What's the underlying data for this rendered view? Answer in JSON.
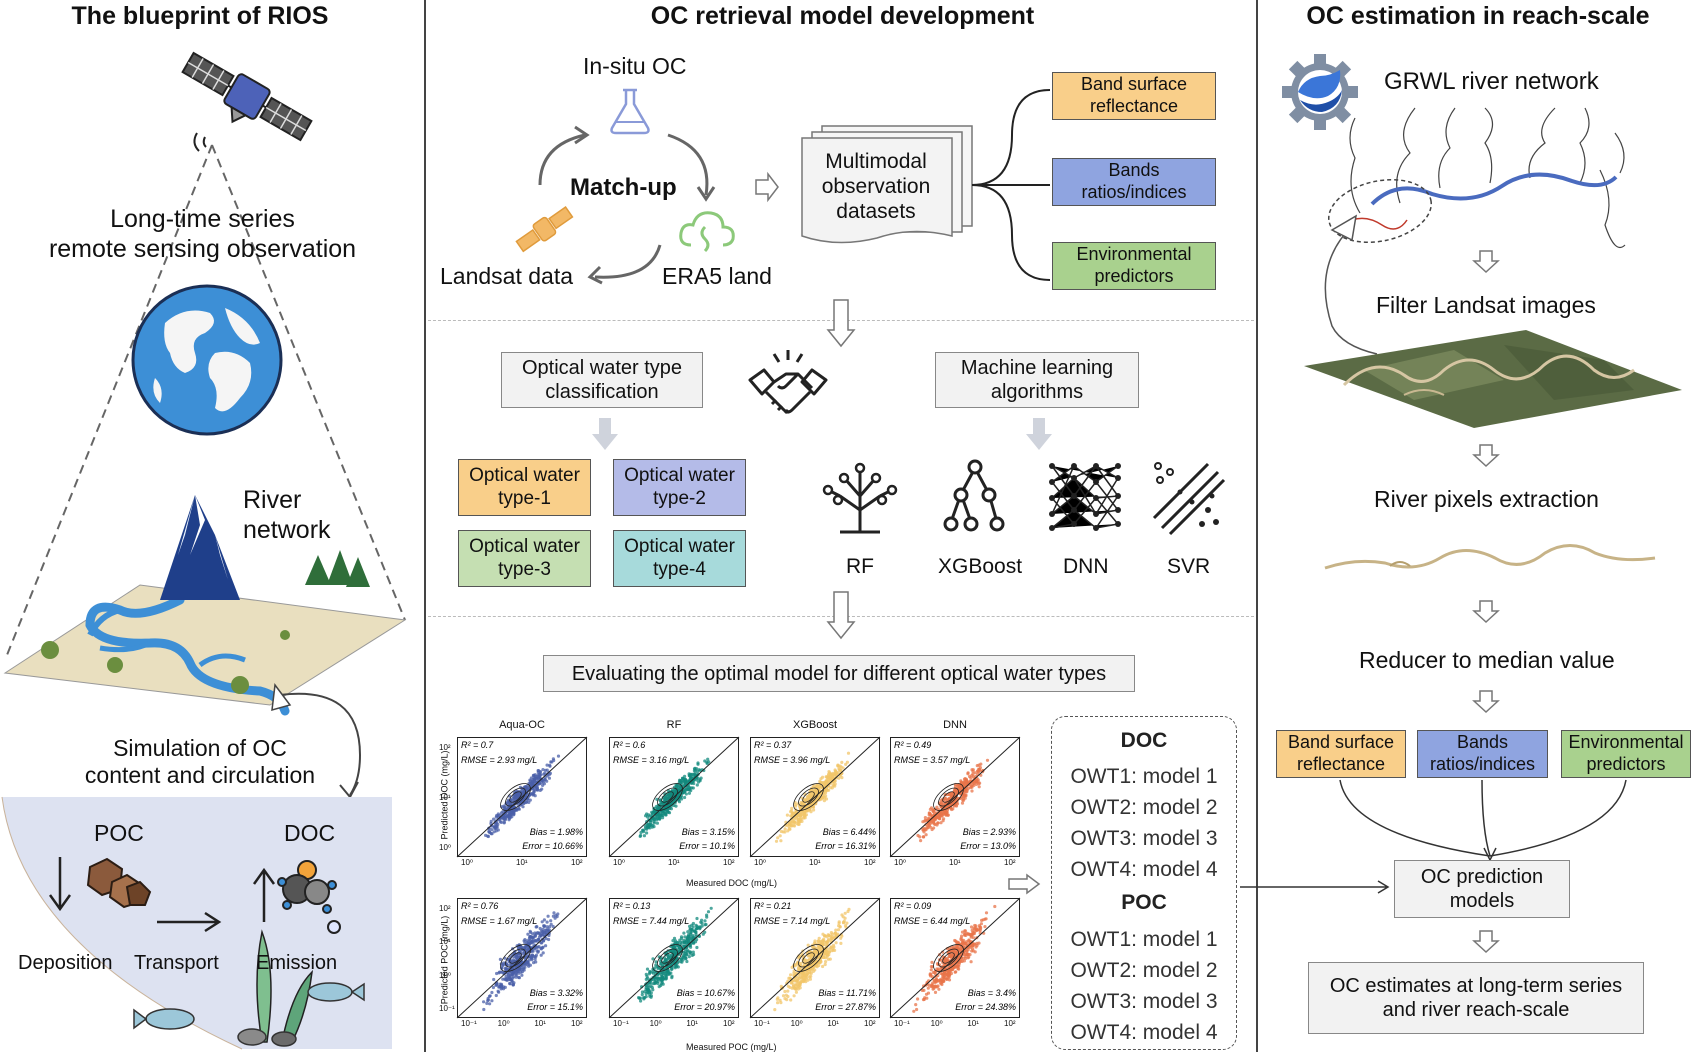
{
  "left": {
    "title": "The blueprint of RIOS",
    "observation": [
      "Long-time series",
      "remote sensing observation"
    ],
    "river_network": [
      "River",
      "network"
    ],
    "simulation": [
      "Simulation of OC",
      "content and circulation"
    ],
    "poc": "POC",
    "doc": "DOC",
    "deposition": "Deposition",
    "transport": "Transport",
    "emission": "Emission"
  },
  "middle": {
    "title": "OC retrieval model development",
    "insitu": "In-situ OC",
    "matchup": "Match-up",
    "landsat": "Landsat data",
    "era5": "ERA5 land",
    "multimodal": [
      "Multimodal",
      "observation",
      "datasets"
    ],
    "features": [
      {
        "label": [
          "Band surface",
          "reflectance"
        ],
        "color": "#f9cf8a"
      },
      {
        "label": [
          "Bands",
          "ratios/indices"
        ],
        "color": "#8fa4e0"
      },
      {
        "label": [
          "Environmental",
          "predictors"
        ],
        "color": "#a9d18e"
      }
    ],
    "owt_classification": [
      "Optical water type",
      "classification"
    ],
    "ml_algorithms": [
      "Machine learning",
      "algorithms"
    ],
    "owt_types": [
      [
        "Optical water",
        "type-1"
      ],
      [
        "Optical water",
        "type-2"
      ],
      [
        "Optical water",
        "type-3"
      ],
      [
        "Optical water",
        "type-4"
      ]
    ],
    "models": [
      "RF",
      "XGBoost",
      "DNN",
      "SVR"
    ],
    "evaluating": "Evaluating the optimal model for different optical water types",
    "doc_x_label": "Measured DOC (mg/L)",
    "poc_x_label": "Measured POC (mg/L)",
    "doc_y_label": "Predicted DOC (mg/L)",
    "poc_y_label": "Predicted POC (mg/L)",
    "plot_titles": [
      "Aqua-OC",
      "RF",
      "XGBoost",
      "DNN"
    ],
    "doc_stats": [
      {
        "r2": "R² = 0.7",
        "rmse": "RMSE = 2.93 mg/L",
        "bias": "Bias = 1.98%",
        "error": "Error = 10.66%",
        "color": "#4a5fa8"
      },
      {
        "r2": "R² = 0.6",
        "rmse": "RMSE = 3.16 mg/L",
        "bias": "Bias = 3.15%",
        "error": "Error = 10.1%",
        "color": "#138a7d"
      },
      {
        "r2": "R² = 0.37",
        "rmse": "RMSE = 3.96 mg/L",
        "bias": "Bias = 6.44%",
        "error": "Error = 16.31%",
        "color": "#f2c56a"
      },
      {
        "r2": "R² = 0.49",
        "rmse": "RMSE = 3.57 mg/L",
        "bias": "Bias = 2.93%",
        "error": "Error = 13.0%",
        "color": "#e8744a"
      }
    ],
    "poc_stats": [
      {
        "r2": "R² = 0.76",
        "rmse": "RMSE = 1.67 mg/L",
        "bias": "Bias = 3.32%",
        "error": "Error = 15.1%",
        "color": "#4a5fa8"
      },
      {
        "r2": "R² = 0.13",
        "rmse": "RMSE = 7.44 mg/L",
        "bias": "Bias = 10.67%",
        "error": "Error = 20.97%",
        "color": "#138a7d"
      },
      {
        "r2": "R² = 0.21",
        "rmse": "RMSE = 7.14 mg/L",
        "bias": "Bias = 11.71%",
        "error": "Error = 27.87%",
        "color": "#f2c56a"
      },
      {
        "r2": "R² = 0.09",
        "rmse": "RMSE = 6.44 mg/L",
        "bias": "Bias = 3.4%",
        "error": "Error = 24.38%",
        "color": "#e8744a"
      }
    ],
    "doc_ticks": [
      "10⁰",
      "10¹",
      "10²"
    ],
    "poc_ticks": [
      "10⁻¹",
      "10⁰",
      "10¹",
      "10²"
    ],
    "result_doc": "DOC",
    "result_poc": "POC",
    "doc_models": [
      "OWT1: model 1",
      "OWT2: model 2",
      "OWT3: model 3",
      "OWT4: model 4"
    ],
    "poc_models": [
      "OWT1: model 1",
      "OWT2: model 2",
      "OWT3: model 3",
      "OWT4: model 4"
    ]
  },
  "right": {
    "title": "OC estimation in reach-scale",
    "grwl": "GRWL river network",
    "filter": "Filter Landsat images",
    "extraction": "River pixels extraction",
    "reducer": "Reducer to median value",
    "features": [
      {
        "label": [
          "Band surface",
          "reflectance"
        ],
        "color": "#f9cf8a"
      },
      {
        "label": [
          "Bands",
          "ratios/indices"
        ],
        "color": "#8fa4e0"
      },
      {
        "label": [
          "Environmental",
          "predictors"
        ],
        "color": "#a9d18e"
      }
    ],
    "prediction": [
      "OC prediction",
      "models"
    ],
    "estimates": [
      "OC estimates at long-term series",
      "and river reach-scale"
    ]
  }
}
